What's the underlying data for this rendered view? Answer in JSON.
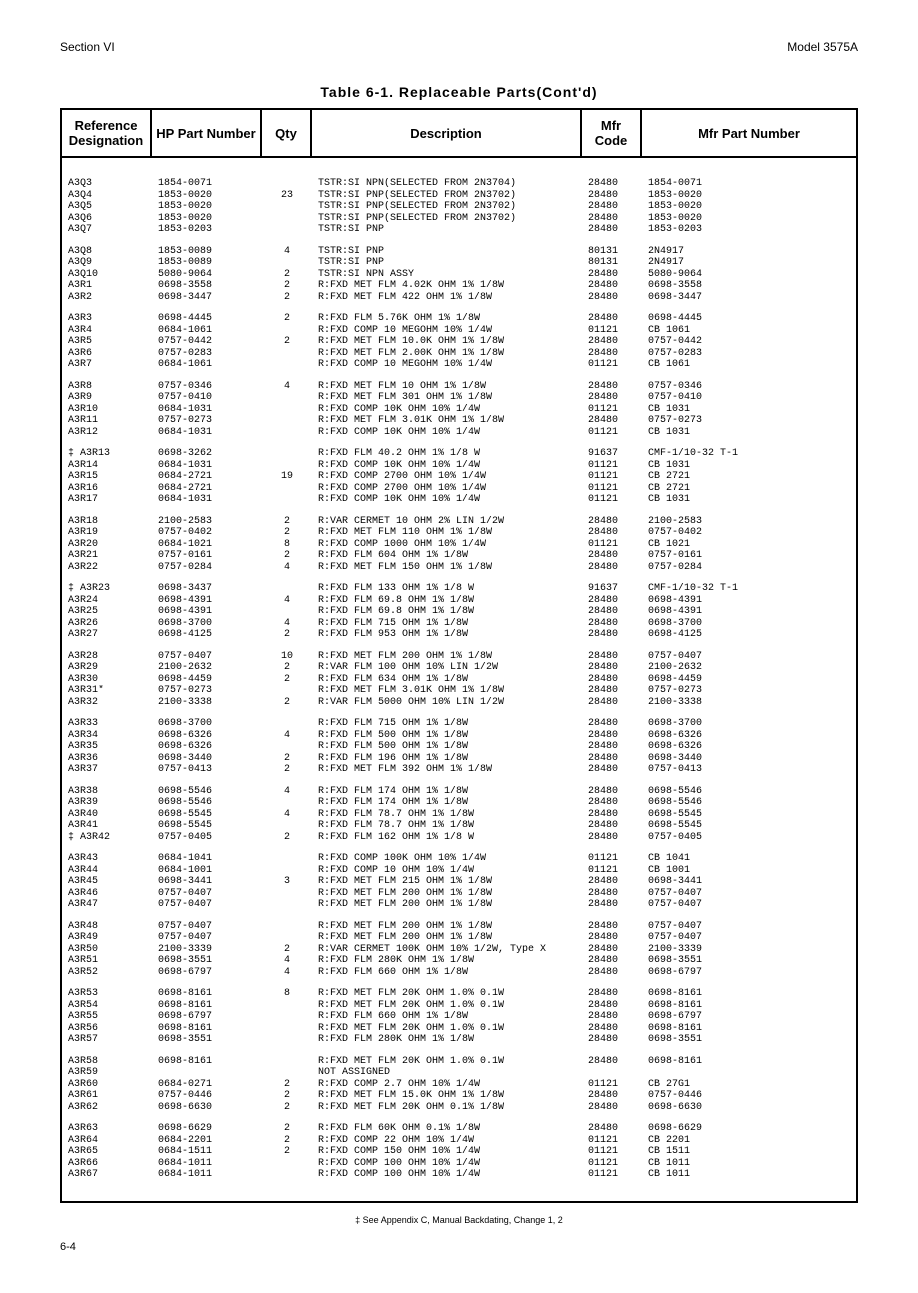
{
  "header": {
    "section": "Section VI",
    "model": "Model 3575A"
  },
  "title": "Table 6-1. Replaceable Parts(Cont'd)",
  "columns": {
    "ref": "Reference Designation",
    "hp": "HP Part Number",
    "qty": "Qty",
    "desc": "Description",
    "mfr": "Mfr Code",
    "mfrpart": "Mfr Part Number"
  },
  "footnote": "‡ See Appendix C, Manual Backdating, Change 1, 2",
  "page_num": "6-4",
  "rows": [
    {
      "ref": "A3Q3",
      "hp": "1854-0071",
      "qty": "",
      "desc": "TSTR:SI NPN(SELECTED FROM 2N3704)",
      "mfr": "28480",
      "mfrpart": "1854-0071"
    },
    {
      "ref": "A3Q4",
      "hp": "1853-0020",
      "qty": "23",
      "desc": "TSTR:SI PNP(SELECTED FROM 2N3702)",
      "mfr": "28480",
      "mfrpart": "1853-0020"
    },
    {
      "ref": "A3Q5",
      "hp": "1853-0020",
      "qty": "",
      "desc": "TSTR:SI PNP(SELECTED FROM 2N3702)",
      "mfr": "28480",
      "mfrpart": "1853-0020"
    },
    {
      "ref": "A3Q6",
      "hp": "1853-0020",
      "qty": "",
      "desc": "TSTR:SI PNP(SELECTED FROM 2N3702)",
      "mfr": "28480",
      "mfrpart": "1853-0020"
    },
    {
      "ref": "A3Q7",
      "hp": "1853-0203",
      "qty": "",
      "desc": "TSTR:SI PNP",
      "mfr": "28480",
      "mfrpart": "1853-0203"
    },
    {
      "spacer": true
    },
    {
      "ref": "A3Q8",
      "hp": "1853-0089",
      "qty": "4",
      "desc": "TSTR:SI PNP",
      "mfr": "80131",
      "mfrpart": "2N4917"
    },
    {
      "ref": "A3Q9",
      "hp": "1853-0089",
      "qty": "",
      "desc": "TSTR:SI PNP",
      "mfr": "80131",
      "mfrpart": "2N4917"
    },
    {
      "ref": "A3Q10",
      "hp": "5080-9064",
      "qty": "2",
      "desc": "TSTR:SI NPN ASSY",
      "mfr": "28480",
      "mfrpart": "5080-9064"
    },
    {
      "ref": "A3R1",
      "hp": "0698-3558",
      "qty": "2",
      "desc": "R:FXD MET FLM 4.02K OHM 1% 1/8W",
      "mfr": "28480",
      "mfrpart": "0698-3558"
    },
    {
      "ref": "A3R2",
      "hp": "0698-3447",
      "qty": "2",
      "desc": "R:FXD MET FLM 422 OHM 1% 1/8W",
      "mfr": "28480",
      "mfrpart": "0698-3447"
    },
    {
      "spacer": true
    },
    {
      "ref": "A3R3",
      "hp": "0698-4445",
      "qty": "2",
      "desc": "R:FXD FLM 5.76K OHM 1% 1/8W",
      "mfr": "28480",
      "mfrpart": "0698-4445"
    },
    {
      "ref": "A3R4",
      "hp": "0684-1061",
      "qty": "",
      "desc": "R:FXD COMP 10 MEGOHM 10% 1/4W",
      "mfr": "01121",
      "mfrpart": "CB 1061"
    },
    {
      "ref": "A3R5",
      "hp": "0757-0442",
      "qty": "2",
      "desc": "R:FXD MET FLM 10.0K OHM 1% 1/8W",
      "mfr": "28480",
      "mfrpart": "0757-0442"
    },
    {
      "ref": "A3R6",
      "hp": "0757-0283",
      "qty": "",
      "desc": "R:FXD MET FLM 2.00K OHM 1% 1/8W",
      "mfr": "28480",
      "mfrpart": "0757-0283"
    },
    {
      "ref": "A3R7",
      "hp": "0684-1061",
      "qty": "",
      "desc": "R:FXD COMP 10 MEGOHM 10% 1/4W",
      "mfr": "01121",
      "mfrpart": "CB 1061"
    },
    {
      "spacer": true
    },
    {
      "ref": "A3R8",
      "hp": "0757-0346",
      "qty": "4",
      "desc": "R:FXD MET FLM 10 OHM 1% 1/8W",
      "mfr": "28480",
      "mfrpart": "0757-0346"
    },
    {
      "ref": "A3R9",
      "hp": "0757-0410",
      "qty": "",
      "desc": "R:FXD MET FLM 301 OHM 1% 1/8W",
      "mfr": "28480",
      "mfrpart": "0757-0410"
    },
    {
      "ref": "A3R10",
      "hp": "0684-1031",
      "qty": "",
      "desc": "R:FXD COMP 10K OHM 10% 1/4W",
      "mfr": "01121",
      "mfrpart": "CB 1031"
    },
    {
      "ref": "A3R11",
      "hp": "0757-0273",
      "qty": "",
      "desc": "R:FXD MET FLM 3.01K OHM 1% 1/8W",
      "mfr": "28480",
      "mfrpart": "0757-0273"
    },
    {
      "ref": "A3R12",
      "hp": "0684-1031",
      "qty": "",
      "desc": "R:FXD COMP 10K OHM 10% 1/4W",
      "mfr": "01121",
      "mfrpart": "CB 1031"
    },
    {
      "spacer": true
    },
    {
      "ref": "‡ A3R13",
      "hp": "0698-3262",
      "qty": "",
      "desc": "R:FXD FLM 40.2 OHM 1% 1/8 W",
      "mfr": "91637",
      "mfrpart": "CMF-1/10-32 T-1"
    },
    {
      "ref": "A3R14",
      "hp": "0684-1031",
      "qty": "",
      "desc": "R:FXD COMP 10K OHM 10% 1/4W",
      "mfr": "01121",
      "mfrpart": "CB 1031"
    },
    {
      "ref": "A3R15",
      "hp": "0684-2721",
      "qty": "19",
      "desc": "R:FXD COMP 2700 OHM 10% 1/4W",
      "mfr": "01121",
      "mfrpart": "CB 2721"
    },
    {
      "ref": "A3R16",
      "hp": "0684-2721",
      "qty": "",
      "desc": "R:FXD COMP 2700 OHM 10% 1/4W",
      "mfr": "01121",
      "mfrpart": "CB 2721"
    },
    {
      "ref": "A3R17",
      "hp": "0684-1031",
      "qty": "",
      "desc": "R:FXD COMP 10K OHM 10% 1/4W",
      "mfr": "01121",
      "mfrpart": "CB 1031"
    },
    {
      "spacer": true
    },
    {
      "ref": "A3R18",
      "hp": "2100-2583",
      "qty": "2",
      "desc": "R:VAR CERMET 10 OHM 2% LIN 1/2W",
      "mfr": "28480",
      "mfrpart": "2100-2583"
    },
    {
      "ref": "A3R19",
      "hp": "0757-0402",
      "qty": "2",
      "desc": "R:FXD MET FLM 110 OHM 1% 1/8W",
      "mfr": "28480",
      "mfrpart": "0757-0402"
    },
    {
      "ref": "A3R20",
      "hp": "0684-1021",
      "qty": "8",
      "desc": "R:FXD COMP 1000 OHM 10% 1/4W",
      "mfr": "01121",
      "mfrpart": "CB 1021"
    },
    {
      "ref": "A3R21",
      "hp": "0757-0161",
      "qty": "2",
      "desc": "R:FXD FLM 604 OHM 1% 1/8W",
      "mfr": "28480",
      "mfrpart": "0757-0161"
    },
    {
      "ref": "A3R22",
      "hp": "0757-0284",
      "qty": "4",
      "desc": "R:FXD MET FLM 150 OHM 1% 1/8W",
      "mfr": "28480",
      "mfrpart": "0757-0284"
    },
    {
      "spacer": true
    },
    {
      "ref": "‡ A3R23",
      "hp": "0698-3437",
      "qty": "",
      "desc": "R:FXD FLM 133 OHM 1% 1/8 W",
      "mfr": "91637",
      "mfrpart": "CMF-1/10-32 T-1"
    },
    {
      "ref": "A3R24",
      "hp": "0698-4391",
      "qty": "4",
      "desc": "R:FXD FLM 69.8 OHM 1% 1/8W",
      "mfr": "28480",
      "mfrpart": "0698-4391"
    },
    {
      "ref": "A3R25",
      "hp": "0698-4391",
      "qty": "",
      "desc": "R:FXD FLM 69.8 OHM 1% 1/8W",
      "mfr": "28480",
      "mfrpart": "0698-4391"
    },
    {
      "ref": "A3R26",
      "hp": "0698-3700",
      "qty": "4",
      "desc": "R:FXD FLM 715 OHM 1% 1/8W",
      "mfr": "28480",
      "mfrpart": "0698-3700"
    },
    {
      "ref": "A3R27",
      "hp": "0698-4125",
      "qty": "2",
      "desc": "R:FXD FLM 953 OHM 1% 1/8W",
      "mfr": "28480",
      "mfrpart": "0698-4125"
    },
    {
      "spacer": true
    },
    {
      "ref": "A3R28",
      "hp": "0757-0407",
      "qty": "10",
      "desc": "R:FXD MET FLM 200 OHM 1% 1/8W",
      "mfr": "28480",
      "mfrpart": "0757-0407"
    },
    {
      "ref": "A3R29",
      "hp": "2100-2632",
      "qty": "2",
      "desc": "R:VAR FLM 100 OHM 10% LIN 1/2W",
      "mfr": "28480",
      "mfrpart": "2100-2632"
    },
    {
      "ref": "A3R30",
      "hp": "0698-4459",
      "qty": "2",
      "desc": "R:FXD FLM 634 OHM 1% 1/8W",
      "mfr": "28480",
      "mfrpart": "0698-4459"
    },
    {
      "ref": "A3R31*",
      "hp": "0757-0273",
      "qty": "",
      "desc": "R:FXD MET FLM 3.01K OHM 1% 1/8W",
      "mfr": "28480",
      "mfrpart": "0757-0273"
    },
    {
      "ref": "A3R32",
      "hp": "2100-3338",
      "qty": "2",
      "desc": "R:VAR FLM 5000 OHM 10% LIN 1/2W",
      "mfr": "28480",
      "mfrpart": "2100-3338"
    },
    {
      "spacer": true
    },
    {
      "ref": "A3R33",
      "hp": "0698-3700",
      "qty": "",
      "desc": "R:FXD FLM 715 OHM 1% 1/8W",
      "mfr": "28480",
      "mfrpart": "0698-3700"
    },
    {
      "ref": "A3R34",
      "hp": "0698-6326",
      "qty": "4",
      "desc": "R:FXD FLM 500 OHM 1% 1/8W",
      "mfr": "28480",
      "mfrpart": "0698-6326"
    },
    {
      "ref": "A3R35",
      "hp": "0698-6326",
      "qty": "",
      "desc": "R:FXD FLM 500 OHM 1% 1/8W",
      "mfr": "28480",
      "mfrpart": "0698-6326"
    },
    {
      "ref": "A3R36",
      "hp": "0698-3440",
      "qty": "2",
      "desc": "R:FXD FLM 196 OHM 1% 1/8W",
      "mfr": "28480",
      "mfrpart": "0698-3440"
    },
    {
      "ref": "A3R37",
      "hp": "0757-0413",
      "qty": "2",
      "desc": "R:FXD MET FLM 392 OHM 1% 1/8W",
      "mfr": "28480",
      "mfrpart": "0757-0413"
    },
    {
      "spacer": true
    },
    {
      "ref": "A3R38",
      "hp": "0698-5546",
      "qty": "4",
      "desc": "R:FXD FLM 174 OHM 1% 1/8W",
      "mfr": "28480",
      "mfrpart": "0698-5546"
    },
    {
      "ref": "A3R39",
      "hp": "0698-5546",
      "qty": "",
      "desc": "R:FXD FLM 174 OHM 1% 1/8W",
      "mfr": "28480",
      "mfrpart": "0698-5546"
    },
    {
      "ref": "A3R40",
      "hp": "0698-5545",
      "qty": "4",
      "desc": "R:FXD FLM 78.7 OHM 1% 1/8W",
      "mfr": "28480",
      "mfrpart": "0698-5545"
    },
    {
      "ref": "A3R41",
      "hp": "0698-5545",
      "qty": "",
      "desc": "R:FXD FLM 78.7 OHM 1% 1/8W",
      "mfr": "28480",
      "mfrpart": "0698-5545"
    },
    {
      "ref": "‡ A3R42",
      "hp": "0757-0405",
      "qty": "2",
      "desc": "R:FXD FLM 162 OHM 1% 1/8 W",
      "mfr": "28480",
      "mfrpart": "0757-0405"
    },
    {
      "spacer": true
    },
    {
      "ref": "A3R43",
      "hp": "0684-1041",
      "qty": "",
      "desc": "R:FXD COMP 100K OHM 10% 1/4W",
      "mfr": "01121",
      "mfrpart": "CB 1041"
    },
    {
      "ref": "A3R44",
      "hp": "0684-1001",
      "qty": "",
      "desc": "R:FXD COMP 10 OHM 10% 1/4W",
      "mfr": "01121",
      "mfrpart": "CB 1001"
    },
    {
      "ref": "A3R45",
      "hp": "0698-3441",
      "qty": "3",
      "desc": "R:FXD MET FLM 215 OHM 1% 1/8W",
      "mfr": "28480",
      "mfrpart": "0698-3441"
    },
    {
      "ref": "A3R46",
      "hp": "0757-0407",
      "qty": "",
      "desc": "R:FXD MET FLM 200 OHM 1% 1/8W",
      "mfr": "28480",
      "mfrpart": "0757-0407"
    },
    {
      "ref": "A3R47",
      "hp": "0757-0407",
      "qty": "",
      "desc": "R:FXD MET FLM 200 OHM 1% 1/8W",
      "mfr": "28480",
      "mfrpart": "0757-0407"
    },
    {
      "spacer": true
    },
    {
      "ref": "A3R48",
      "hp": "0757-0407",
      "qty": "",
      "desc": "R:FXD MET FLM 200 OHM 1% 1/8W",
      "mfr": "28480",
      "mfrpart": "0757-0407"
    },
    {
      "ref": "A3R49",
      "hp": "0757-0407",
      "qty": "",
      "desc": "R:FXD MET FLM 200 OHM 1% 1/8W",
      "mfr": "28480",
      "mfrpart": "0757-0407"
    },
    {
      "ref": "A3R50",
      "hp": "2100-3339",
      "qty": "2",
      "desc": "R:VAR CERMET 100K OHM 10% 1/2W, Type X",
      "mfr": "28480",
      "mfrpart": "2100-3339"
    },
    {
      "ref": "A3R51",
      "hp": "0698-3551",
      "qty": "4",
      "desc": "R:FXD FLM 280K OHM 1% 1/8W",
      "mfr": "28480",
      "mfrpart": "0698-3551"
    },
    {
      "ref": "A3R52",
      "hp": "0698-6797",
      "qty": "4",
      "desc": "R:FXD FLM 660 OHM 1% 1/8W",
      "mfr": "28480",
      "mfrpart": "0698-6797"
    },
    {
      "spacer": true
    },
    {
      "ref": "A3R53",
      "hp": "0698-8161",
      "qty": "8",
      "desc": "R:FXD MET FLM 20K OHM 1.0% 0.1W",
      "mfr": "28480",
      "mfrpart": "0698-8161"
    },
    {
      "ref": "A3R54",
      "hp": "0698-8161",
      "qty": "",
      "desc": "R:FXD MET FLM 20K OHM 1.0% 0.1W",
      "mfr": "28480",
      "mfrpart": "0698-8161"
    },
    {
      "ref": "A3R55",
      "hp": "0698-6797",
      "qty": "",
      "desc": "R:FXD FLM 660 OHM 1% 1/8W",
      "mfr": "28480",
      "mfrpart": "0698-6797"
    },
    {
      "ref": "A3R56",
      "hp": "0698-8161",
      "qty": "",
      "desc": "R:FXD MET FLM 20K OHM 1.0% 0.1W",
      "mfr": "28480",
      "mfrpart": "0698-8161"
    },
    {
      "ref": "A3R57",
      "hp": "0698-3551",
      "qty": "",
      "desc": "R:FXD FLM 280K OHM 1% 1/8W",
      "mfr": "28480",
      "mfrpart": "0698-3551"
    },
    {
      "spacer": true
    },
    {
      "ref": "A3R58",
      "hp": "0698-8161",
      "qty": "",
      "desc": "R:FXD MET FLM 20K OHM 1.0% 0.1W",
      "mfr": "28480",
      "mfrpart": "0698-8161"
    },
    {
      "ref": "A3R59",
      "hp": "",
      "qty": "",
      "desc": "NOT ASSIGNED",
      "mfr": "",
      "mfrpart": ""
    },
    {
      "ref": "A3R60",
      "hp": "0684-0271",
      "qty": "2",
      "desc": "R:FXD COMP 2.7 OHM 10% 1/4W",
      "mfr": "01121",
      "mfrpart": "CB 27G1"
    },
    {
      "ref": "A3R61",
      "hp": "0757-0446",
      "qty": "2",
      "desc": "R:FXD MET FLM 15.0K OHM 1% 1/8W",
      "mfr": "28480",
      "mfrpart": "0757-0446"
    },
    {
      "ref": "A3R62",
      "hp": "0698-6630",
      "qty": "2",
      "desc": "R:FXD MET FLM 20K OHM 0.1% 1/8W",
      "mfr": "28480",
      "mfrpart": "0698-6630"
    },
    {
      "spacer": true
    },
    {
      "ref": "A3R63",
      "hp": "0698-6629",
      "qty": "2",
      "desc": "R:FXD FLM 60K OHM 0.1% 1/8W",
      "mfr": "28480",
      "mfrpart": "0698-6629"
    },
    {
      "ref": "A3R64",
      "hp": "0684-2201",
      "qty": "2",
      "desc": "R:FXD COMP 22 OHM 10% 1/4W",
      "mfr": "01121",
      "mfrpart": "CB 2201"
    },
    {
      "ref": "A3R65",
      "hp": "0684-1511",
      "qty": "2",
      "desc": "R:FXD COMP 150 OHM 10% 1/4W",
      "mfr": "01121",
      "mfrpart": "CB 1511"
    },
    {
      "ref": "A3R66",
      "hp": "0684-1011",
      "qty": "",
      "desc": "R:FXD COMP 100 OHM 10% 1/4W",
      "mfr": "01121",
      "mfrpart": "CB 1011"
    },
    {
      "ref": "A3R67",
      "hp": "0684-1011",
      "qty": "",
      "desc": "R:FXD COMP 100 OHM 10% 1/4W",
      "mfr": "01121",
      "mfrpart": "CB 1011"
    }
  ]
}
